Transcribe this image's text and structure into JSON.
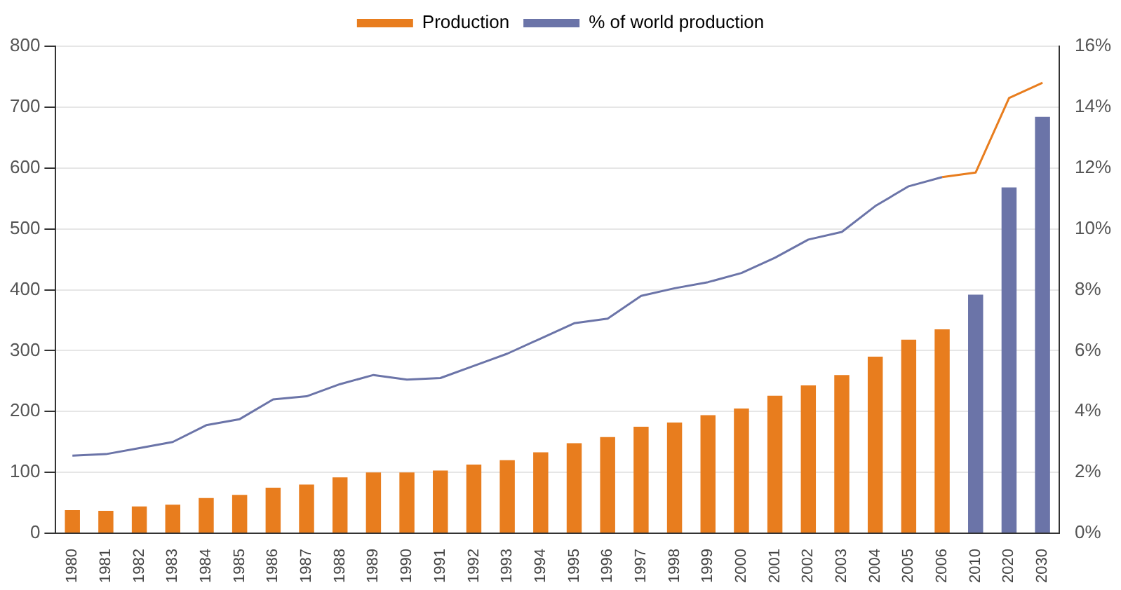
{
  "chart_data": {
    "type": "bar",
    "categories": [
      "1980",
      "1981",
      "1982",
      "1983",
      "1984",
      "1985",
      "1986",
      "1987",
      "1988",
      "1989",
      "1990",
      "1991",
      "1992",
      "1993",
      "1994",
      "1995",
      "1996",
      "1997",
      "1998",
      "1999",
      "2000",
      "2001",
      "2002",
      "2003",
      "2004",
      "2005",
      "2006",
      "2010",
      "2020",
      "2030"
    ],
    "series": [
      {
        "name": "Production",
        "color": "#e87d1e",
        "colors": [
          "#e87d1e",
          "#e87d1e",
          "#e87d1e",
          "#e87d1e",
          "#e87d1e",
          "#e87d1e",
          "#e87d1e",
          "#e87d1e",
          "#e87d1e",
          "#e87d1e",
          "#e87d1e",
          "#e87d1e",
          "#e87d1e",
          "#e87d1e",
          "#e87d1e",
          "#e87d1e",
          "#e87d1e",
          "#e87d1e",
          "#e87d1e",
          "#e87d1e",
          "#e87d1e",
          "#e87d1e",
          "#e87d1e",
          "#e87d1e",
          "#e87d1e",
          "#e87d1e",
          "#e87d1e",
          "#6b74a8",
          "#6b74a8",
          "#6b74a8"
        ],
        "values": [
          38,
          37,
          44,
          47,
          58,
          63,
          75,
          80,
          92,
          100,
          100,
          103,
          113,
          120,
          133,
          148,
          158,
          175,
          182,
          194,
          205,
          226,
          243,
          260,
          290,
          318,
          335,
          392,
          568,
          684
        ]
      },
      {
        "name": "% of world production",
        "type": "line",
        "axis": "y2",
        "color": "#6b74a8",
        "values": [
          2.55,
          2.6,
          2.8,
          3.0,
          3.55,
          3.75,
          4.4,
          4.5,
          4.9,
          5.2,
          5.05,
          5.1,
          5.5,
          5.9,
          6.4,
          6.9,
          7.05,
          7.8,
          8.05,
          8.25,
          8.55,
          9.05,
          9.65,
          9.9,
          10.75,
          11.4,
          11.7,
          null,
          null,
          null
        ]
      },
      {
        "type": "line",
        "axis": "y2",
        "color": "#e87d1e",
        "values": [
          null,
          null,
          null,
          null,
          null,
          null,
          null,
          null,
          null,
          null,
          null,
          null,
          null,
          null,
          null,
          null,
          null,
          null,
          null,
          null,
          null,
          null,
          null,
          null,
          null,
          null,
          11.7,
          11.85,
          14.3,
          14.8
        ]
      }
    ],
    "ylim": [
      0,
      800
    ],
    "yticks": [
      0,
      100,
      200,
      300,
      400,
      500,
      600,
      700,
      800
    ],
    "y2lim": [
      0,
      16
    ],
    "y2ticks": [
      {
        "value": 0,
        "label": "0%"
      },
      {
        "value": 2,
        "label": "2%"
      },
      {
        "value": 4,
        "label": "4%"
      },
      {
        "value": 6,
        "label": "6%"
      },
      {
        "value": 8,
        "label": "8%"
      },
      {
        "value": 10,
        "label": "10%"
      },
      {
        "value": 12,
        "label": "12%"
      },
      {
        "value": 14,
        "label": "14%"
      },
      {
        "value": 16,
        "label": "16%"
      }
    ],
    "grid": "y",
    "legend": "top",
    "marker": "none",
    "line_style": "solid"
  }
}
